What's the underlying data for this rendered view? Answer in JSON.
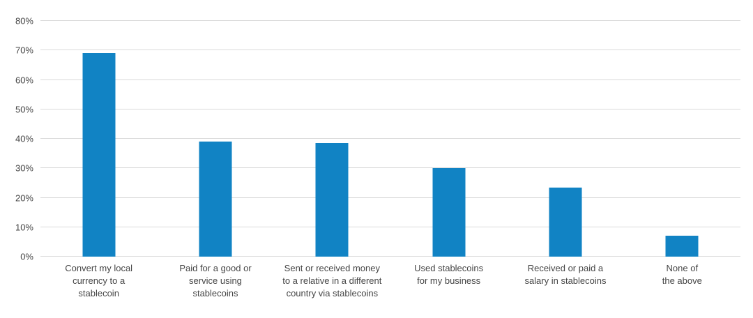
{
  "chart_data": {
    "type": "bar",
    "title": "",
    "xlabel": "",
    "ylabel": "",
    "categories": [
      "Convert my local currency to a stablecoin",
      "Paid for a good or service using stablecoins",
      "Sent or received money to a relative in a different country via stablecoins",
      "Used stablecoins for my business",
      "Received or paid a salary in stablecoins",
      "None of the above"
    ],
    "category_lines": [
      [
        "Convert my local",
        "currency to a",
        "stablecoin"
      ],
      [
        "Paid for a good or",
        "service using",
        "stablecoins"
      ],
      [
        "Sent or received money",
        "to a relative in a different",
        "country via stablecoins"
      ],
      [
        "Used stablecoins",
        "for my business"
      ],
      [
        "Received or paid a",
        "salary in stablecoins"
      ],
      [
        "None of",
        "the above"
      ]
    ],
    "values": [
      69,
      39,
      38.5,
      30,
      23.5,
      7
    ],
    "ylim": [
      0,
      80
    ],
    "ytick_labels": [
      "0%",
      "10%",
      "20%",
      "30%",
      "40%",
      "50%",
      "60%",
      "70%",
      "80%"
    ],
    "grid": true,
    "legend": false,
    "colors": {
      "bar": "#1183c4",
      "gridline": "#d9d9d9",
      "text": "#454545"
    }
  }
}
